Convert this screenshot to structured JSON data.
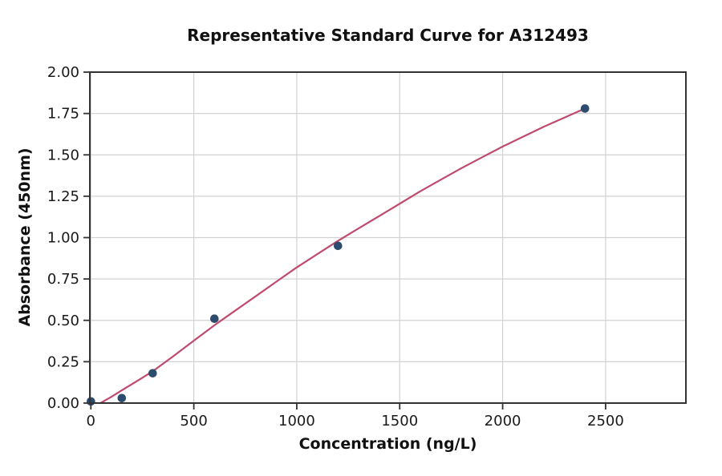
{
  "page": {
    "background": "#ffffff"
  },
  "chart_data": {
    "type": "scatter",
    "title": "Representative Standard Curve for A312493",
    "xlabel": "Concentration (ng/L)",
    "ylabel": "Absorbance (450nm)",
    "xlim": [
      -5,
      2890
    ],
    "ylim": [
      0,
      2
    ],
    "grid": true,
    "legend": false,
    "x_ticks": [
      {
        "value": 0,
        "label": "0"
      },
      {
        "value": 500,
        "label": "500"
      },
      {
        "value": 1000,
        "label": "1000"
      },
      {
        "value": 1500,
        "label": "1500"
      },
      {
        "value": 2000,
        "label": "2000"
      },
      {
        "value": 2500,
        "label": "2500"
      }
    ],
    "y_ticks": [
      {
        "value": 0.0,
        "label": "0.00"
      },
      {
        "value": 0.25,
        "label": "0.25"
      },
      {
        "value": 0.5,
        "label": "0.50"
      },
      {
        "value": 0.75,
        "label": "0.75"
      },
      {
        "value": 1.0,
        "label": "1.00"
      },
      {
        "value": 1.25,
        "label": "1.25"
      },
      {
        "value": 1.5,
        "label": "1.50"
      },
      {
        "value": 1.75,
        "label": "1.75"
      },
      {
        "value": 2.0,
        "label": "2.00"
      }
    ],
    "series": [
      {
        "name": "standard-points",
        "type": "scatter",
        "points": [
          [
            0,
            0.01
          ],
          [
            150,
            0.03
          ],
          [
            300,
            0.18
          ],
          [
            600,
            0.51
          ],
          [
            1200,
            0.95
          ],
          [
            2400,
            1.78
          ]
        ]
      },
      {
        "name": "fitted-curve",
        "type": "line",
        "points": [
          [
            46,
            0.0
          ],
          [
            100,
            0.038
          ],
          [
            150,
            0.077
          ],
          [
            200,
            0.115
          ],
          [
            250,
            0.153
          ],
          [
            300,
            0.192
          ],
          [
            400,
            0.283
          ],
          [
            500,
            0.377
          ],
          [
            600,
            0.47
          ],
          [
            700,
            0.558
          ],
          [
            800,
            0.645
          ],
          [
            900,
            0.733
          ],
          [
            1000,
            0.82
          ],
          [
            1100,
            0.9
          ],
          [
            1200,
            0.98
          ],
          [
            1300,
            1.055
          ],
          [
            1400,
            1.13
          ],
          [
            1500,
            1.205
          ],
          [
            1600,
            1.28
          ],
          [
            1700,
            1.35
          ],
          [
            1800,
            1.42
          ],
          [
            1900,
            1.485
          ],
          [
            2000,
            1.55
          ],
          [
            2100,
            1.61
          ],
          [
            2200,
            1.67
          ],
          [
            2300,
            1.725
          ],
          [
            2400,
            1.78
          ]
        ]
      }
    ],
    "colors": {
      "point": "#2d4b6d",
      "curve": "#bf4a6d",
      "grid": "#d2d2d2",
      "spine": "#333333",
      "text": "#1a1a1a",
      "background": "#ffffff"
    }
  }
}
